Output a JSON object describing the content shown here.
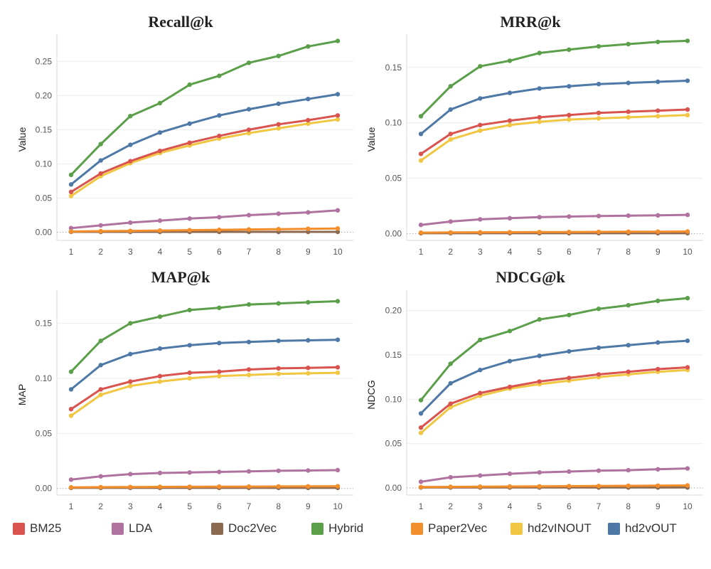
{
  "colors": {
    "BM25": "#d9534f",
    "LDA": "#b0729f",
    "Doc2Vec": "#8c6a52",
    "Hybrid": "#5b9f4a",
    "Paper2Vec": "#f28e2b",
    "hd2vINOUT": "#f0c642",
    "hd2vOUT": "#4e79a7"
  },
  "legend": [
    "BM25",
    "LDA",
    "Doc2Vec",
    "Hybrid",
    "Paper2Vec",
    "hd2vINOUT",
    "hd2vOUT"
  ],
  "chart_data": [
    {
      "type": "line",
      "title": "Recall@k",
      "xlabel": "",
      "ylabel": "Value",
      "x": [
        1,
        2,
        3,
        4,
        5,
        6,
        7,
        8,
        9,
        10
      ],
      "ylim": [
        -0.012,
        0.29
      ],
      "yticks": [
        "0.00",
        "0.05",
        "0.10",
        "0.15",
        "0.20",
        "0.25"
      ],
      "series": [
        {
          "name": "LDA",
          "values": [
            0.006,
            0.01,
            0.014,
            0.017,
            0.02,
            0.022,
            0.025,
            0.027,
            0.029,
            0.032
          ]
        },
        {
          "name": "Doc2Vec",
          "values": [
            0.0005,
            0.0005,
            0.0005,
            0.0005,
            0.0005,
            0.0005,
            0.0005,
            0.0005,
            0.0005,
            0.0005
          ]
        },
        {
          "name": "Paper2Vec",
          "values": [
            0.001,
            0.0015,
            0.002,
            0.0025,
            0.003,
            0.0035,
            0.004,
            0.0045,
            0.005,
            0.0055
          ]
        },
        {
          "name": "hd2vINOUT",
          "values": [
            0.053,
            0.082,
            0.101,
            0.116,
            0.127,
            0.137,
            0.145,
            0.152,
            0.159,
            0.165
          ]
        },
        {
          "name": "BM25",
          "values": [
            0.059,
            0.086,
            0.104,
            0.119,
            0.131,
            0.141,
            0.15,
            0.158,
            0.164,
            0.171
          ]
        },
        {
          "name": "hd2vOUT",
          "values": [
            0.07,
            0.105,
            0.128,
            0.146,
            0.159,
            0.171,
            0.18,
            0.188,
            0.195,
            0.202
          ]
        },
        {
          "name": "Hybrid",
          "values": [
            0.084,
            0.129,
            0.17,
            0.189,
            0.216,
            0.229,
            0.248,
            0.258,
            0.272,
            0.28
          ]
        }
      ]
    },
    {
      "type": "line",
      "title": "MRR@k",
      "xlabel": "",
      "ylabel": "Value",
      "x": [
        1,
        2,
        3,
        4,
        5,
        6,
        7,
        8,
        9,
        10
      ],
      "ylim": [
        -0.006,
        0.18
      ],
      "yticks": [
        "0.00",
        "0.05",
        "0.10",
        "0.15"
      ],
      "series": [
        {
          "name": "LDA",
          "values": [
            0.008,
            0.011,
            0.013,
            0.014,
            0.015,
            0.0155,
            0.016,
            0.0163,
            0.0166,
            0.017
          ]
        },
        {
          "name": "Doc2Vec",
          "values": [
            0.0005,
            0.0005,
            0.0005,
            0.0005,
            0.0005,
            0.0005,
            0.0005,
            0.0005,
            0.0005,
            0.0005
          ]
        },
        {
          "name": "Paper2Vec",
          "values": [
            0.001,
            0.0012,
            0.0013,
            0.0014,
            0.0015,
            0.0016,
            0.0017,
            0.0018,
            0.0019,
            0.002
          ]
        },
        {
          "name": "hd2vINOUT",
          "values": [
            0.066,
            0.085,
            0.093,
            0.098,
            0.101,
            0.103,
            0.104,
            0.105,
            0.106,
            0.107
          ]
        },
        {
          "name": "BM25",
          "values": [
            0.072,
            0.09,
            0.098,
            0.102,
            0.105,
            0.107,
            0.109,
            0.11,
            0.111,
            0.112
          ]
        },
        {
          "name": "hd2vOUT",
          "values": [
            0.09,
            0.112,
            0.122,
            0.127,
            0.131,
            0.133,
            0.135,
            0.136,
            0.137,
            0.138
          ]
        },
        {
          "name": "Hybrid",
          "values": [
            0.106,
            0.133,
            0.151,
            0.156,
            0.163,
            0.166,
            0.169,
            0.171,
            0.173,
            0.174
          ]
        }
      ]
    },
    {
      "type": "line",
      "title": "MAP@k",
      "xlabel": "",
      "ylabel": "MAP",
      "x": [
        1,
        2,
        3,
        4,
        5,
        6,
        7,
        8,
        9,
        10
      ],
      "ylim": [
        -0.006,
        0.18
      ],
      "yticks": [
        "0.00",
        "0.05",
        "0.10",
        "0.15"
      ],
      "series": [
        {
          "name": "LDA",
          "values": [
            0.008,
            0.011,
            0.013,
            0.014,
            0.0145,
            0.015,
            0.0155,
            0.016,
            0.0163,
            0.0166
          ]
        },
        {
          "name": "Doc2Vec",
          "values": [
            0.0005,
            0.0005,
            0.0005,
            0.0005,
            0.0005,
            0.0005,
            0.0005,
            0.0005,
            0.0005,
            0.0005
          ]
        },
        {
          "name": "Paper2Vec",
          "values": [
            0.001,
            0.0012,
            0.0013,
            0.0014,
            0.0015,
            0.0016,
            0.0017,
            0.0018,
            0.0019,
            0.002
          ]
        },
        {
          "name": "hd2vINOUT",
          "values": [
            0.066,
            0.085,
            0.093,
            0.097,
            0.1,
            0.102,
            0.103,
            0.104,
            0.1045,
            0.105
          ]
        },
        {
          "name": "BM25",
          "values": [
            0.072,
            0.09,
            0.097,
            0.102,
            0.105,
            0.106,
            0.108,
            0.109,
            0.1095,
            0.11
          ]
        },
        {
          "name": "hd2vOUT",
          "values": [
            0.09,
            0.112,
            0.122,
            0.127,
            0.13,
            0.132,
            0.133,
            0.134,
            0.1345,
            0.135
          ]
        },
        {
          "name": "Hybrid",
          "values": [
            0.106,
            0.134,
            0.15,
            0.156,
            0.162,
            0.164,
            0.167,
            0.168,
            0.169,
            0.17
          ]
        }
      ]
    },
    {
      "type": "line",
      "title": "NDCG@k",
      "xlabel": "",
      "ylabel": "NDCG",
      "x": [
        1,
        2,
        3,
        4,
        5,
        6,
        7,
        8,
        9,
        10
      ],
      "ylim": [
        -0.008,
        0.223
      ],
      "yticks": [
        "0.00",
        "0.05",
        "0.10",
        "0.15",
        "0.20"
      ],
      "series": [
        {
          "name": "LDA",
          "values": [
            0.007,
            0.012,
            0.014,
            0.016,
            0.0175,
            0.0185,
            0.0195,
            0.02,
            0.021,
            0.022
          ]
        },
        {
          "name": "Doc2Vec",
          "values": [
            0.0005,
            0.0005,
            0.0005,
            0.0005,
            0.0005,
            0.0005,
            0.0005,
            0.0005,
            0.0005,
            0.0005
          ]
        },
        {
          "name": "Paper2Vec",
          "values": [
            0.001,
            0.0012,
            0.0014,
            0.0016,
            0.0018,
            0.002,
            0.0022,
            0.0024,
            0.0026,
            0.0028
          ]
        },
        {
          "name": "hd2vINOUT",
          "values": [
            0.062,
            0.091,
            0.104,
            0.112,
            0.117,
            0.121,
            0.125,
            0.128,
            0.131,
            0.133
          ]
        },
        {
          "name": "BM25",
          "values": [
            0.068,
            0.095,
            0.107,
            0.114,
            0.12,
            0.124,
            0.128,
            0.131,
            0.134,
            0.136
          ]
        },
        {
          "name": "hd2vOUT",
          "values": [
            0.084,
            0.118,
            0.133,
            0.143,
            0.149,
            0.154,
            0.158,
            0.161,
            0.164,
            0.166
          ]
        },
        {
          "name": "Hybrid",
          "values": [
            0.099,
            0.14,
            0.167,
            0.177,
            0.19,
            0.195,
            0.202,
            0.206,
            0.211,
            0.214
          ]
        }
      ]
    }
  ]
}
